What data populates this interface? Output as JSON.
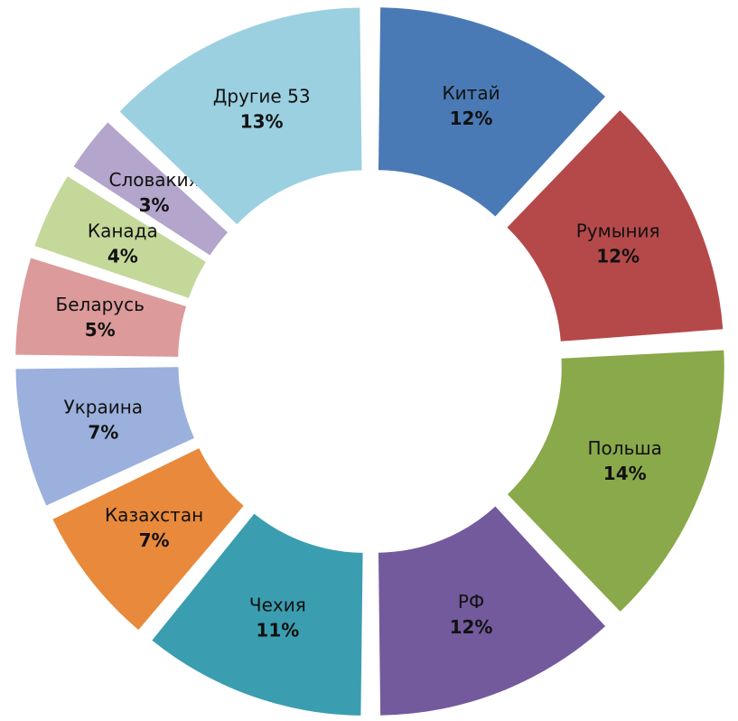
{
  "chart_data": {
    "type": "donut",
    "categories": [
      "Китай",
      "Румыния",
      "Польша",
      "РФ",
      "Чехия",
      "Казахстан",
      "Украина",
      "Беларусь",
      "Канада",
      "Словакия",
      "Другие 53"
    ],
    "values": [
      12,
      12,
      14,
      12,
      11,
      7,
      7,
      5,
      4,
      3,
      13
    ],
    "value_labels": [
      "12%",
      "12%",
      "14%",
      "12%",
      "11%",
      "7%",
      "7%",
      "5%",
      "4%",
      "3%",
      "13%"
    ],
    "colors": [
      "#4a7ab5",
      "#b5494a",
      "#8aa94a",
      "#735a9c",
      "#3b9db0",
      "#e8893b",
      "#9bb0dc",
      "#dc9a9a",
      "#c4d89a",
      "#b3a5cc",
      "#9bd0e0"
    ]
  }
}
